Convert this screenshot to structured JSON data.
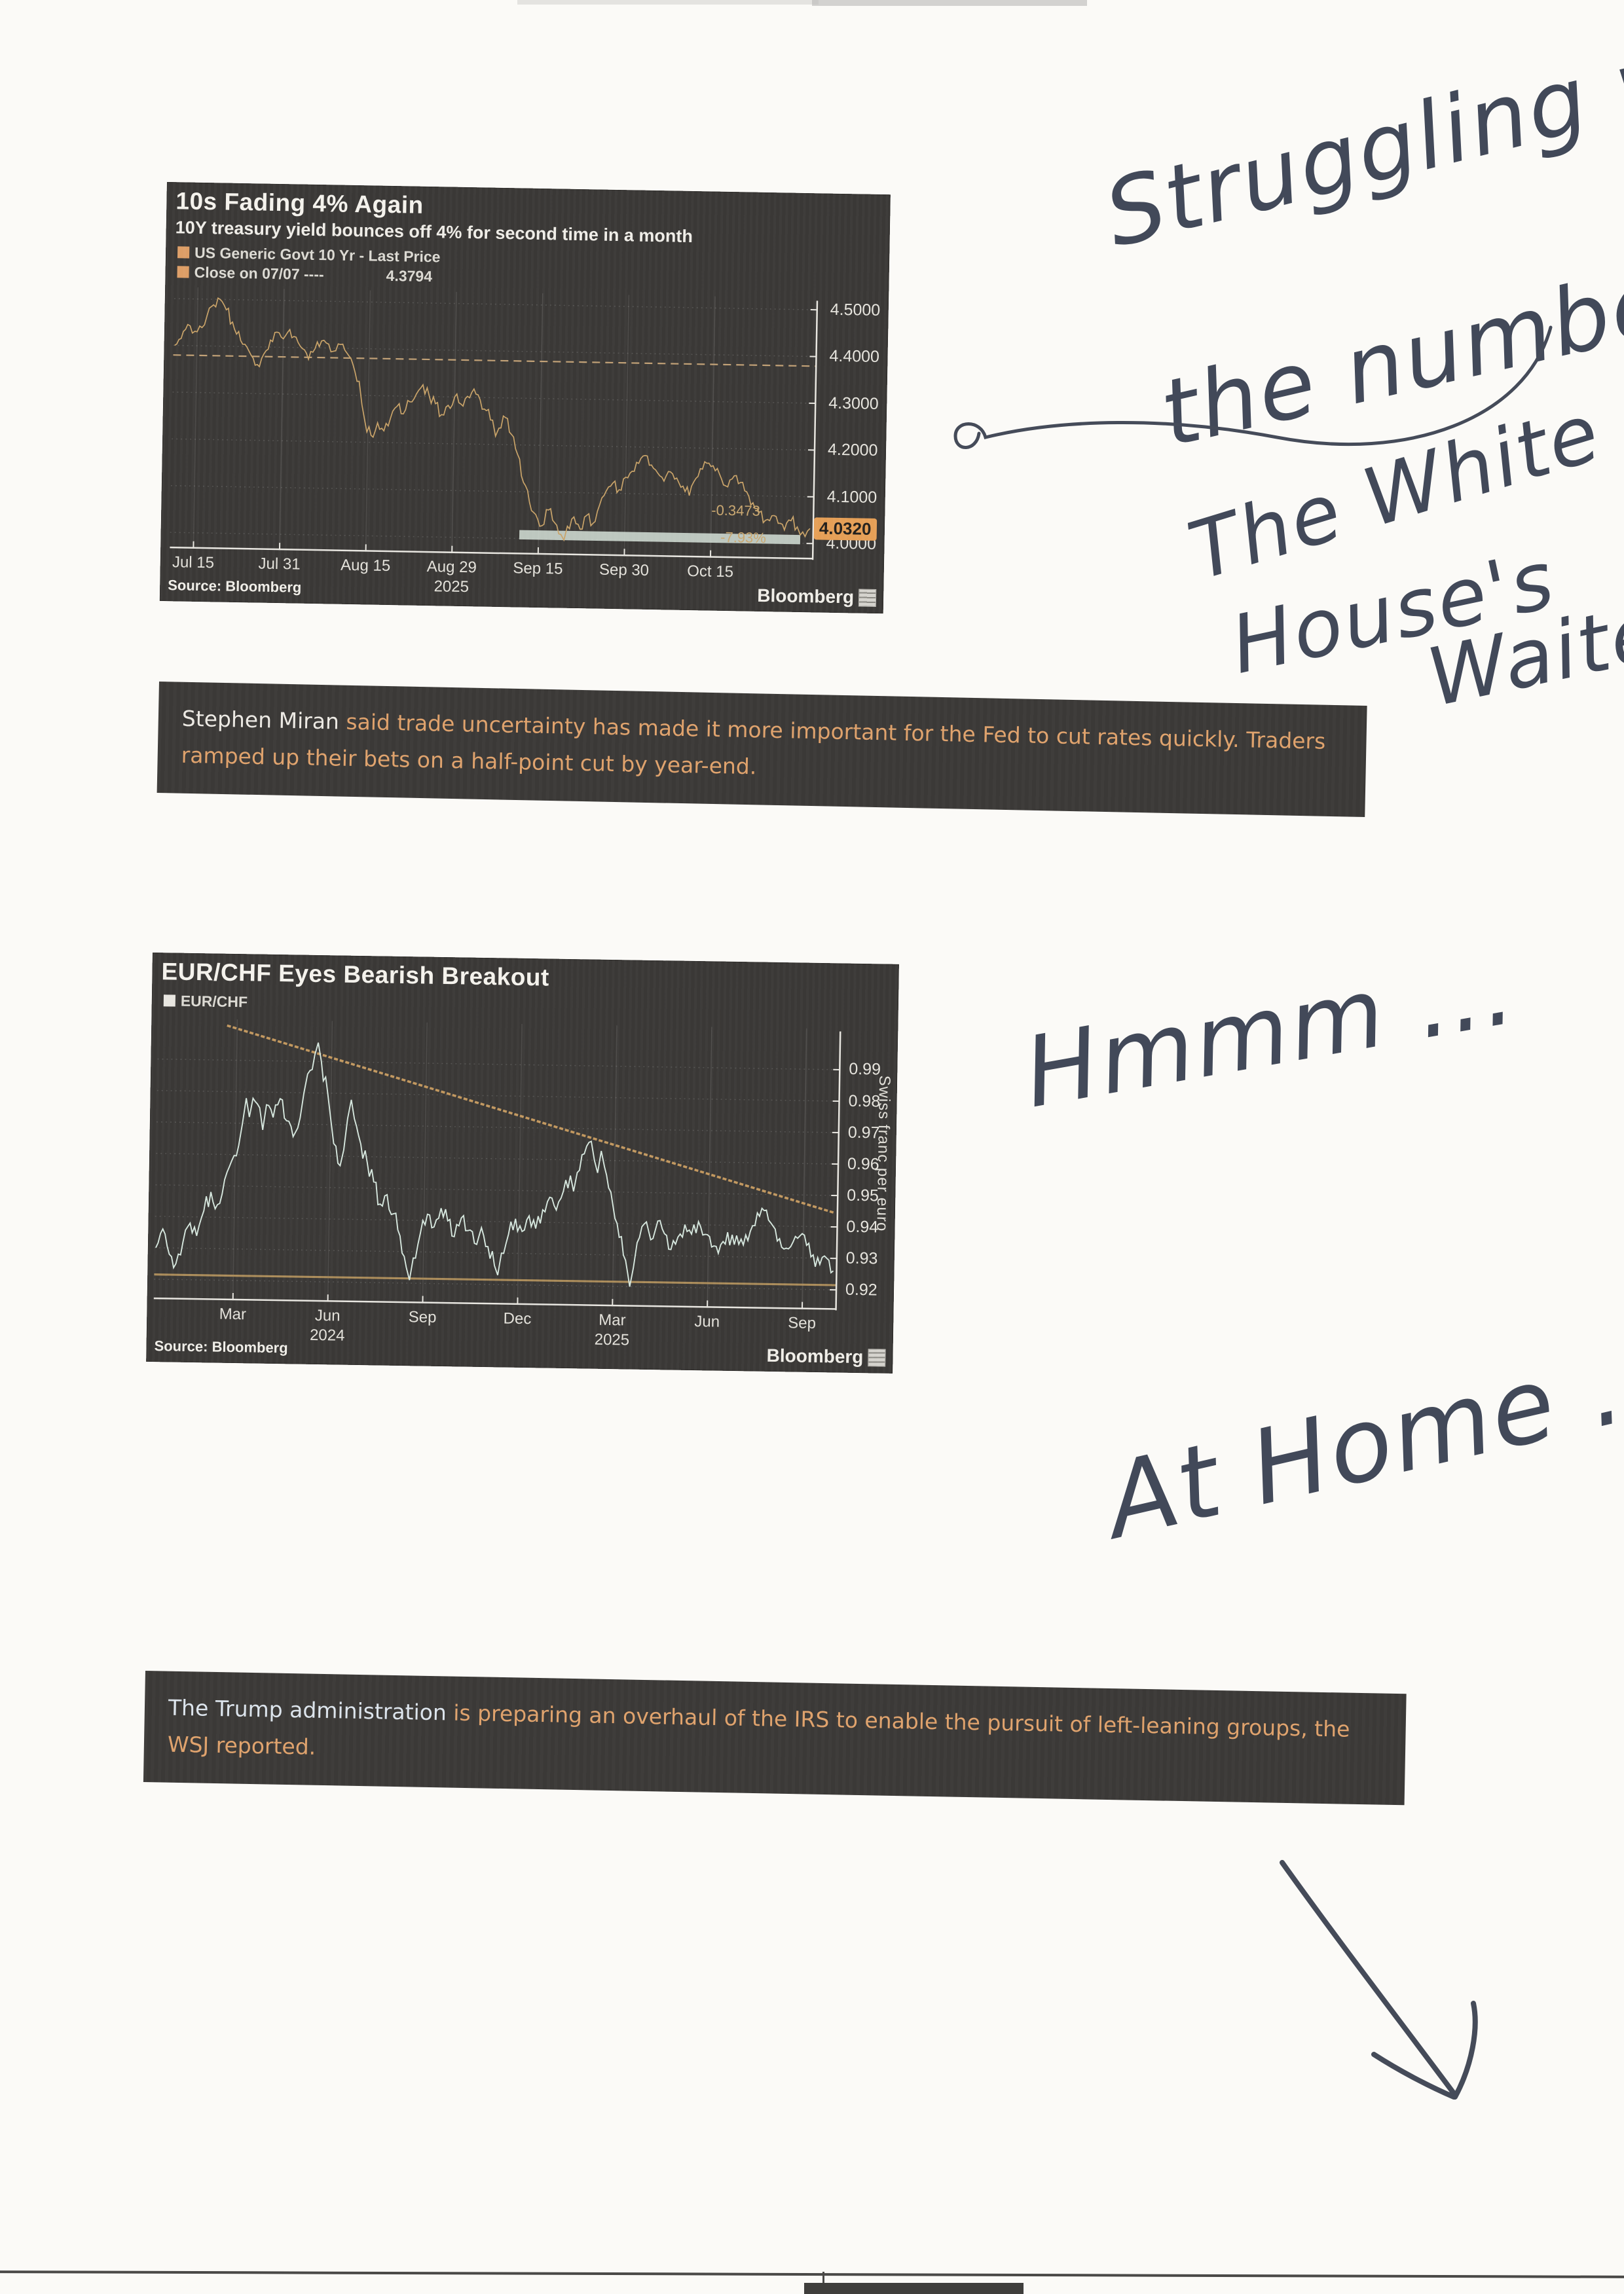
{
  "handwriting": {
    "top_note_line1": "Struggling with",
    "top_note_line2": "the number",
    "mid_note_line1": "The White",
    "mid_note_line2": "House's",
    "mid_note_line3": "Waiter",
    "hmm_note": "Hmmm ...",
    "home_note": "At Home ..."
  },
  "notes": [
    {
      "highlight": "Stephen Miran",
      "body": " said trade uncertainty has made it more important for the Fed to cut rates quickly. Traders ramped up their bets on a half-point cut by year-end."
    },
    {
      "highlight": "The Trump administration",
      "body": " is preparing an overhaul of the IRS to enable the pursuit of left-leaning groups, the WSJ reported."
    }
  ],
  "chart_data": [
    {
      "type": "line",
      "title": "10s Fading 4% Again",
      "subtitle": "10Y treasury yield bounces off 4% for second time in a month",
      "legend": [
        {
          "label": "US Generic Govt 10 Yr - Last Price",
          "swatch": "#dd9e66"
        },
        {
          "label": "Close on 07/07 ----",
          "swatch": "#dd9e66",
          "value": "4.3794"
        }
      ],
      "ylabel": "",
      "ylim": [
        3.965,
        4.525
      ],
      "y_ticks": [
        {
          "v": 4.5,
          "label": "4.5000"
        },
        {
          "v": 4.4,
          "label": "4.4000"
        },
        {
          "v": 4.3,
          "label": "4.3000"
        },
        {
          "v": 4.2,
          "label": "4.2000"
        },
        {
          "v": 4.1,
          "label": "4.1000"
        },
        {
          "v": 4.0,
          "label": "4.0000"
        }
      ],
      "x_ticks": [
        {
          "t": 0.035,
          "label": "Jul 15"
        },
        {
          "t": 0.17,
          "label": "Jul 31"
        },
        {
          "t": 0.305,
          "label": "Aug 15"
        },
        {
          "t": 0.44,
          "label": "Aug 29"
        },
        {
          "t": 0.575,
          "label": "Sep 15"
        },
        {
          "t": 0.71,
          "label": "Sep 30"
        },
        {
          "t": 0.845,
          "label": "Oct 15"
        }
      ],
      "year_ticks": [
        {
          "t": 0.44,
          "label": "2025"
        }
      ],
      "close_line": {
        "v": 4.3794,
        "color": "#c2a176"
      },
      "band": {
        "t1": 0.545,
        "t2": 0.985,
        "v1": 3.998,
        "v2": 4.018,
        "color": "rgba(213,224,215,0.85)"
      },
      "last": {
        "v": 4.032,
        "label": "4.0320"
      },
      "annotations": [
        {
          "t": 0.845,
          "v": 4.066,
          "text": "-0.3473"
        },
        {
          "t": 0.86,
          "v": 4.008,
          "text": "-7.93%"
        }
      ],
      "series": [
        {
          "name": "US Generic Govt 10 Yr - Last Price",
          "color": "#c9a368",
          "width": 1.7,
          "noise": 0.013,
          "points": [
            [
              0,
              4.4
            ],
            [
              0.01,
              4.415
            ],
            [
              0.02,
              4.445
            ],
            [
              0.035,
              4.43
            ],
            [
              0.05,
              4.465
            ],
            [
              0.06,
              4.488
            ],
            [
              0.07,
              4.5
            ],
            [
              0.08,
              4.478
            ],
            [
              0.09,
              4.452
            ],
            [
              0.1,
              4.432
            ],
            [
              0.11,
              4.405
            ],
            [
              0.12,
              4.382
            ],
            [
              0.13,
              4.362
            ],
            [
              0.14,
              4.385
            ],
            [
              0.15,
              4.415
            ],
            [
              0.16,
              4.432
            ],
            [
              0.17,
              4.418
            ],
            [
              0.18,
              4.438
            ],
            [
              0.19,
              4.422
            ],
            [
              0.2,
              4.398
            ],
            [
              0.21,
              4.375
            ],
            [
              0.22,
              4.398
            ],
            [
              0.23,
              4.415
            ],
            [
              0.245,
              4.392
            ],
            [
              0.26,
              4.408
            ],
            [
              0.27,
              4.39
            ],
            [
              0.28,
              4.365
            ],
            [
              0.29,
              4.33
            ],
            [
              0.295,
              4.28
            ],
            [
              0.3,
              4.245
            ],
            [
              0.31,
              4.215
            ],
            [
              0.32,
              4.242
            ],
            [
              0.33,
              4.225
            ],
            [
              0.34,
              4.252
            ],
            [
              0.35,
              4.278
            ],
            [
              0.36,
              4.262
            ],
            [
              0.37,
              4.288
            ],
            [
              0.38,
              4.305
            ],
            [
              0.39,
              4.325
            ],
            [
              0.4,
              4.302
            ],
            [
              0.41,
              4.285
            ],
            [
              0.42,
              4.262
            ],
            [
              0.43,
              4.282
            ],
            [
              0.44,
              4.3
            ],
            [
              0.45,
              4.285
            ],
            [
              0.46,
              4.302
            ],
            [
              0.47,
              4.318
            ],
            [
              0.48,
              4.295
            ],
            [
              0.49,
              4.272
            ],
            [
              0.5,
              4.252
            ],
            [
              0.505,
              4.218
            ],
            [
              0.51,
              4.235
            ],
            [
              0.52,
              4.258
            ],
            [
              0.53,
              4.222
            ],
            [
              0.54,
              4.18
            ],
            [
              0.55,
              4.12
            ],
            [
              0.56,
              4.078
            ],
            [
              0.57,
              4.052
            ],
            [
              0.58,
              4.028
            ],
            [
              0.59,
              4.062
            ],
            [
              0.6,
              4.035
            ],
            [
              0.61,
              4.01
            ],
            [
              0.615,
              3.998
            ],
            [
              0.62,
              4.028
            ],
            [
              0.63,
              4.048
            ],
            [
              0.64,
              4.022
            ],
            [
              0.65,
              4.052
            ],
            [
              0.66,
              4.035
            ],
            [
              0.67,
              4.075
            ],
            [
              0.68,
              4.105
            ],
            [
              0.69,
              4.122
            ],
            [
              0.7,
              4.108
            ],
            [
              0.71,
              4.135
            ],
            [
              0.72,
              4.148
            ],
            [
              0.73,
              4.165
            ],
            [
              0.74,
              4.182
            ],
            [
              0.75,
              4.162
            ],
            [
              0.76,
              4.145
            ],
            [
              0.77,
              4.128
            ],
            [
              0.78,
              4.148
            ],
            [
              0.79,
              4.135
            ],
            [
              0.8,
              4.118
            ],
            [
              0.81,
              4.098
            ],
            [
              0.82,
              4.135
            ],
            [
              0.83,
              4.155
            ],
            [
              0.84,
              4.168
            ],
            [
              0.85,
              4.152
            ],
            [
              0.86,
              4.135
            ],
            [
              0.87,
              4.118
            ],
            [
              0.88,
              4.142
            ],
            [
              0.89,
              4.128
            ],
            [
              0.9,
              4.108
            ],
            [
              0.91,
              4.085
            ],
            [
              0.92,
              4.065
            ],
            [
              0.93,
              4.048
            ],
            [
              0.94,
              4.058
            ],
            [
              0.95,
              4.042
            ],
            [
              0.96,
              4.028
            ],
            [
              0.97,
              4.048
            ],
            [
              0.98,
              4.035
            ],
            [
              0.985,
              4.018
            ],
            [
              1.0,
              4.032
            ]
          ]
        }
      ],
      "source": "Source: Bloomberg",
      "brand": "Bloomberg"
    },
    {
      "type": "line",
      "title": "EUR/CHF Eyes Bearish Breakout",
      "subtitle": "",
      "legend": [
        {
          "label": "EUR/CHF",
          "swatch": "#e8e6e0"
        }
      ],
      "right_axis_label": "Swiss franc per euro",
      "ylim": [
        0.9135,
        1.003
      ],
      "y_ticks": [
        {
          "v": 0.99,
          "label": "0.99"
        },
        {
          "v": 0.98,
          "label": "0.98"
        },
        {
          "v": 0.97,
          "label": "0.97"
        },
        {
          "v": 0.96,
          "label": "0.96"
        },
        {
          "v": 0.95,
          "label": "0.95"
        },
        {
          "v": 0.94,
          "label": "0.94"
        },
        {
          "v": 0.93,
          "label": "0.93"
        },
        {
          "v": 0.92,
          "label": "0.92"
        }
      ],
      "x_ticks": [
        {
          "t": 0.115,
          "label": "Mar"
        },
        {
          "t": 0.255,
          "label": "Jun"
        },
        {
          "t": 0.395,
          "label": "Sep"
        },
        {
          "t": 0.535,
          "label": "Dec"
        },
        {
          "t": 0.675,
          "label": "Mar"
        },
        {
          "t": 0.815,
          "label": "Jun"
        },
        {
          "t": 0.955,
          "label": "Sep"
        }
      ],
      "year_ticks": [
        {
          "t": 0.255,
          "label": "2024"
        },
        {
          "t": 0.675,
          "label": "2025"
        }
      ],
      "trend_line": {
        "t1": 0.1,
        "v1": 1.001,
        "t2": 1.0,
        "v2": 0.9445,
        "color": "#c2985f"
      },
      "h_line": {
        "v": 0.9215,
        "color": "#ab8c5a"
      },
      "series": [
        {
          "name": "EUR/CHF",
          "color": "#d6e7de",
          "width": 1.9,
          "noise": 0.0028,
          "points": [
            [
              0,
              0.93
            ],
            [
              0.01,
              0.936
            ],
            [
              0.02,
              0.928
            ],
            [
              0.03,
              0.925
            ],
            [
              0.04,
              0.932
            ],
            [
              0.05,
              0.938
            ],
            [
              0.06,
              0.934
            ],
            [
              0.07,
              0.942
            ],
            [
              0.08,
              0.948
            ],
            [
              0.09,
              0.944
            ],
            [
              0.1,
              0.952
            ],
            [
              0.11,
              0.958
            ],
            [
              0.12,
              0.963
            ],
            [
              0.125,
              0.97
            ],
            [
              0.13,
              0.978
            ],
            [
              0.135,
              0.972
            ],
            [
              0.14,
              0.978
            ],
            [
              0.15,
              0.975
            ],
            [
              0.155,
              0.968
            ],
            [
              0.16,
              0.976
            ],
            [
              0.17,
              0.972
            ],
            [
              0.18,
              0.978
            ],
            [
              0.19,
              0.971
            ],
            [
              0.2,
              0.966
            ],
            [
              0.21,
              0.972
            ],
            [
              0.215,
              0.98
            ],
            [
              0.22,
              0.986
            ],
            [
              0.23,
              0.992
            ],
            [
              0.235,
              0.996
            ],
            [
              0.24,
              0.99
            ],
            [
              0.25,
              0.98
            ],
            [
              0.255,
              0.972
            ],
            [
              0.26,
              0.964
            ],
            [
              0.27,
              0.957
            ],
            [
              0.275,
              0.962
            ],
            [
              0.28,
              0.972
            ],
            [
              0.285,
              0.978
            ],
            [
              0.29,
              0.972
            ],
            [
              0.3,
              0.964
            ],
            [
              0.31,
              0.958
            ],
            [
              0.32,
              0.952
            ],
            [
              0.33,
              0.945
            ],
            [
              0.34,
              0.948
            ],
            [
              0.35,
              0.942
            ],
            [
              0.36,
              0.935
            ],
            [
              0.37,
              0.925
            ],
            [
              0.375,
              0.921
            ],
            [
              0.38,
              0.928
            ],
            [
              0.39,
              0.936
            ],
            [
              0.4,
              0.942
            ],
            [
              0.41,
              0.938
            ],
            [
              0.42,
              0.944
            ],
            [
              0.43,
              0.94
            ],
            [
              0.44,
              0.935
            ],
            [
              0.45,
              0.941
            ],
            [
              0.46,
              0.937
            ],
            [
              0.47,
              0.933
            ],
            [
              0.48,
              0.938
            ],
            [
              0.49,
              0.932
            ],
            [
              0.5,
              0.926
            ],
            [
              0.505,
              0.923
            ],
            [
              0.51,
              0.93
            ],
            [
              0.52,
              0.936
            ],
            [
              0.53,
              0.941
            ],
            [
              0.54,
              0.937
            ],
            [
              0.55,
              0.942
            ],
            [
              0.56,
              0.938
            ],
            [
              0.57,
              0.944
            ],
            [
              0.58,
              0.948
            ],
            [
              0.59,
              0.944
            ],
            [
              0.6,
              0.95
            ],
            [
              0.61,
              0.955
            ],
            [
              0.615,
              0.95
            ],
            [
              0.62,
              0.956
            ],
            [
              0.63,
              0.962
            ],
            [
              0.64,
              0.966
            ],
            [
              0.645,
              0.96
            ],
            [
              0.65,
              0.956
            ],
            [
              0.655,
              0.963
            ],
            [
              0.66,
              0.958
            ],
            [
              0.67,
              0.95
            ],
            [
              0.68,
              0.94
            ],
            [
              0.69,
              0.93
            ],
            [
              0.7,
              0.92
            ],
            [
              0.705,
              0.926
            ],
            [
              0.71,
              0.934
            ],
            [
              0.72,
              0.94
            ],
            [
              0.73,
              0.935
            ],
            [
              0.74,
              0.941
            ],
            [
              0.75,
              0.937
            ],
            [
              0.76,
              0.932
            ],
            [
              0.77,
              0.936
            ],
            [
              0.78,
              0.94
            ],
            [
              0.79,
              0.937
            ],
            [
              0.8,
              0.941
            ],
            [
              0.81,
              0.937
            ],
            [
              0.82,
              0.933
            ],
            [
              0.83,
              0.931
            ],
            [
              0.84,
              0.934
            ],
            [
              0.85,
              0.937
            ],
            [
              0.86,
              0.934
            ],
            [
              0.87,
              0.937
            ],
            [
              0.88,
              0.94
            ],
            [
              0.89,
              0.943
            ],
            [
              0.9,
              0.945
            ],
            [
              0.91,
              0.94
            ],
            [
              0.92,
              0.936
            ],
            [
              0.93,
              0.933
            ],
            [
              0.94,
              0.935
            ],
            [
              0.95,
              0.937
            ],
            [
              0.96,
              0.934
            ],
            [
              0.97,
              0.931
            ],
            [
              0.98,
              0.928
            ],
            [
              0.99,
              0.93
            ],
            [
              1.0,
              0.926
            ]
          ]
        }
      ],
      "source": "Source: Bloomberg",
      "brand": "Bloomberg"
    }
  ]
}
